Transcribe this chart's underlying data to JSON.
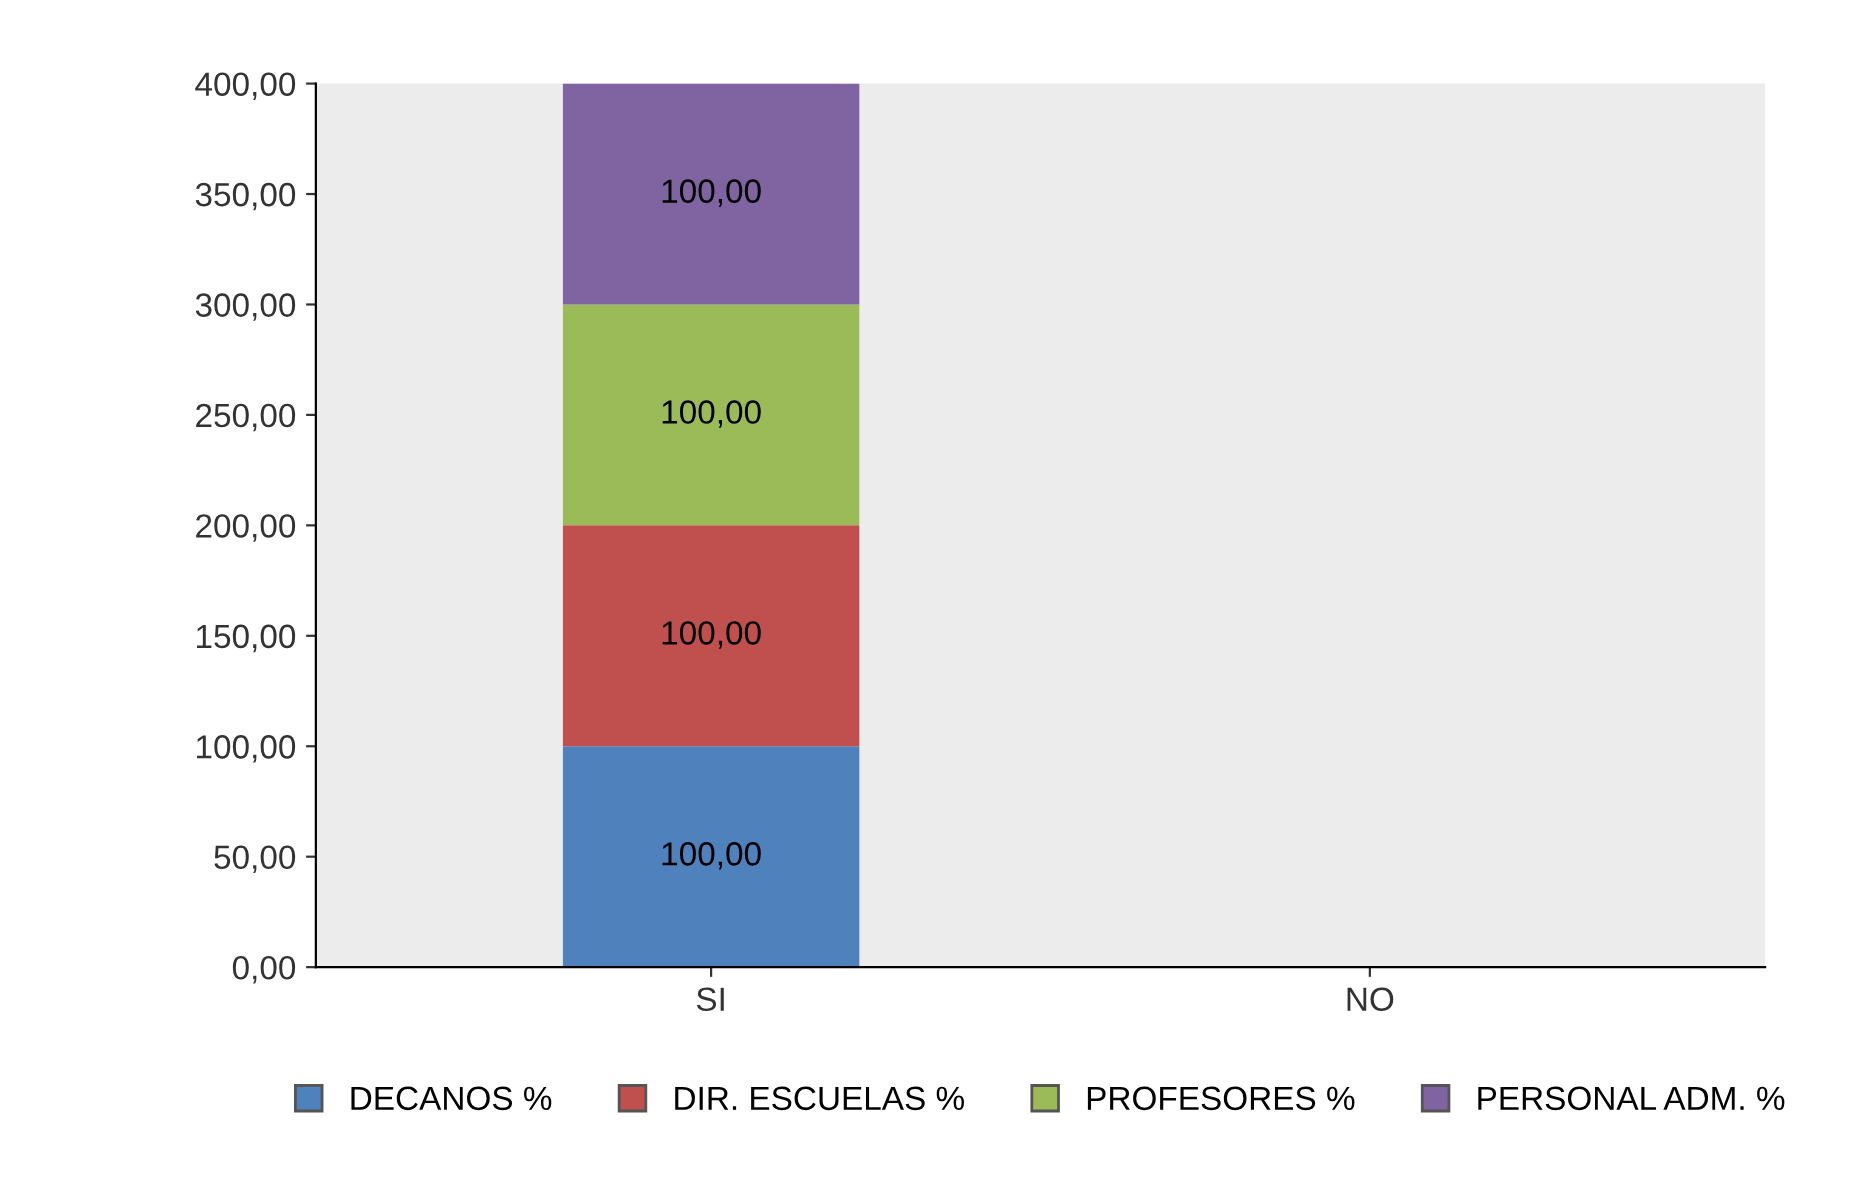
{
  "chart_data": {
    "type": "bar",
    "stacked": true,
    "categories": [
      "SI",
      "NO"
    ],
    "series": [
      {
        "name": "DECANOS %",
        "color": "#4f81bd",
        "values": [
          100,
          null
        ],
        "value_labels": [
          "100,00",
          null
        ]
      },
      {
        "name": "DIR. ESCUELAS %",
        "color": "#c0504d",
        "values": [
          100,
          null
        ],
        "value_labels": [
          "100,00",
          null
        ]
      },
      {
        "name": "PROFESORES %",
        "color": "#9bbb59",
        "values": [
          100,
          null
        ],
        "value_labels": [
          "100,00",
          null
        ]
      },
      {
        "name": "PERSONAL ADM. %",
        "color": "#8064a2",
        "values": [
          100,
          null
        ],
        "value_labels": [
          "100,00",
          null
        ]
      }
    ],
    "ylim": [
      0,
      400
    ],
    "yticks": [
      {
        "value": 0,
        "label": "0,00"
      },
      {
        "value": 50,
        "label": "50,00"
      },
      {
        "value": 100,
        "label": "100,00"
      },
      {
        "value": 150,
        "label": "150,00"
      },
      {
        "value": 200,
        "label": "200,00"
      },
      {
        "value": 250,
        "label": "250,00"
      },
      {
        "value": 300,
        "label": "300,00"
      },
      {
        "value": 350,
        "label": "350,00"
      },
      {
        "value": 400,
        "label": "400,00"
      }
    ],
    "grid": false,
    "legend": "bottom"
  }
}
